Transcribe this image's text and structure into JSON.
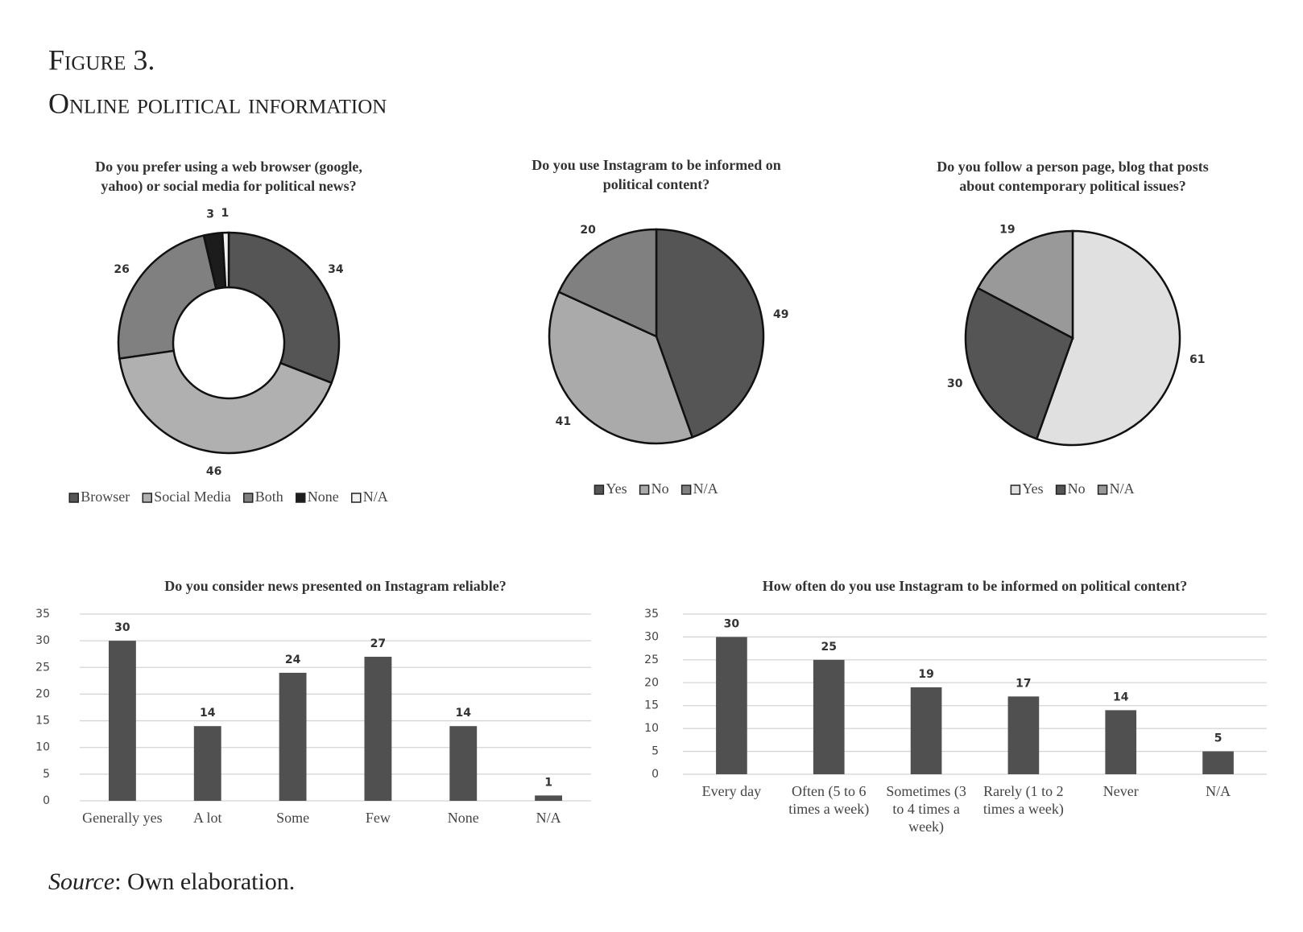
{
  "figure": {
    "label": "Figure 3.",
    "title": "Online political information"
  },
  "source": {
    "label": "Source",
    "text": ": Own elaboration."
  },
  "chart_data": [
    {
      "type": "donut",
      "title": [
        "Do you prefer using a web browser (google,",
        "yahoo) or social media for  political news?"
      ],
      "categories": [
        "Browser",
        "Social Media",
        "Both",
        "None",
        "N/A"
      ],
      "values": [
        34,
        46,
        26,
        3,
        1
      ],
      "colors": [
        "#555555",
        "#b0b0b0",
        "#808080",
        "#1c1c1c",
        "#f2f2f2"
      ],
      "legend": "bottom"
    },
    {
      "type": "pie",
      "title": [
        "Do you use Instagram to be informed on",
        "political content?"
      ],
      "categories": [
        "Yes",
        "No",
        "N/A"
      ],
      "values": [
        49,
        41,
        20
      ],
      "colors": [
        "#555555",
        "#aaaaaa",
        "#808080"
      ],
      "legend": "bottom"
    },
    {
      "type": "pie",
      "title": [
        "Do you follow a person page, blog that posts",
        "about contemporary political issues?"
      ],
      "categories": [
        "Yes",
        "No",
        "N/A"
      ],
      "values": [
        61,
        30,
        19
      ],
      "colors": [
        "#e0e0e0",
        "#555555",
        "#999999"
      ],
      "legend": "bottom"
    },
    {
      "type": "bar",
      "title": [
        "Do you consider news presented on Instagram reliable?"
      ],
      "categories": [
        "Generally yes",
        "A lot",
        "Some",
        "Few",
        "None",
        "N/A"
      ],
      "values": [
        30,
        14,
        24,
        27,
        14,
        1
      ],
      "color": "#505050",
      "ylim": [
        0,
        35
      ],
      "yticks": [
        0,
        5,
        10,
        15,
        20,
        25,
        30,
        35
      ],
      "grid": true
    },
    {
      "type": "bar",
      "title": [
        "How often do you use Instagram to be informed on political content?"
      ],
      "categories": [
        "Every day",
        "Often (5 to 6 times a week)",
        "Sometimes (3 to 4 times a week)",
        "Rarely (1 to 2 times a week)",
        "Never",
        "N/A"
      ],
      "values": [
        30,
        25,
        19,
        17,
        14,
        5
      ],
      "color": "#505050",
      "ylim": [
        0,
        35
      ],
      "yticks": [
        0,
        5,
        10,
        15,
        20,
        25,
        30,
        35
      ],
      "grid": true
    }
  ]
}
